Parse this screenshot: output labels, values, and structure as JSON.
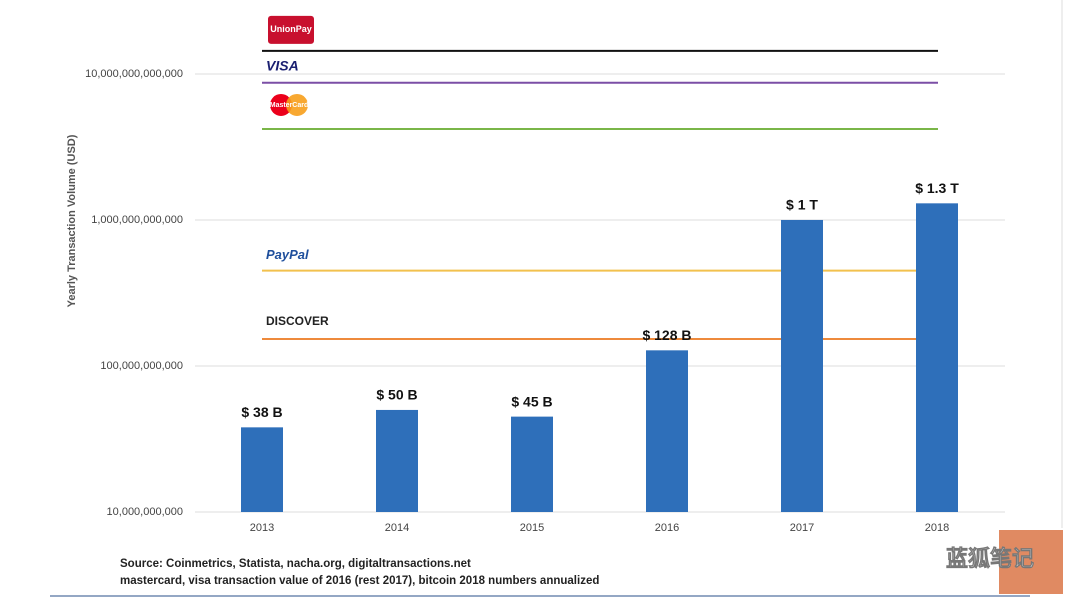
{
  "chart_data": {
    "type": "bar",
    "y_label": "Yearly Transaction Volume (USD)",
    "log_scale": true,
    "grid": true,
    "categories": [
      "2013",
      "2014",
      "2015",
      "2016",
      "2017",
      "2018"
    ],
    "values": [
      38000000000,
      50000000000,
      45000000000,
      128000000000,
      1000000000000,
      1300000000000
    ],
    "value_labels": [
      "$ 38 B",
      "$ 50 B",
      "$ 45 B",
      "$ 128 B",
      "$ 1 T",
      "$ 1.3 T"
    ],
    "color": "#2e6fba",
    "ylim": [
      10000000000,
      20000000000000
    ],
    "yticks": [
      {
        "value": 10000000000,
        "label": "10,000,000,000"
      },
      {
        "value": 100000000000,
        "label": "100,000,000,000"
      },
      {
        "value": 1000000000000,
        "label": "1,000,000,000,000"
      },
      {
        "value": 10000000000000,
        "label": "10,000,000,000,000"
      }
    ],
    "reference_lines": [
      {
        "name": "UnionPay",
        "color": "#111111",
        "value": 14400000000000
      },
      {
        "name": "VISA",
        "color": "#7b4fa6",
        "value": 8700000000000
      },
      {
        "name": "MasterCard",
        "color": "#7ab648",
        "value": 4200000000000
      },
      {
        "name": "PayPal",
        "color": "#f2c14e",
        "value": 450000000000
      },
      {
        "name": "DISCOVER",
        "color": "#ee8a3c",
        "value": 153000000000
      }
    ],
    "notes": [
      "Source: Coinmetrics, Statista, nacha.org, digitaltransactions.net",
      "mastercard, visa transaction value of 2016 (rest 2017), bitcoin 2018 numbers annualized"
    ],
    "watermark": "蓝狐笔记"
  }
}
